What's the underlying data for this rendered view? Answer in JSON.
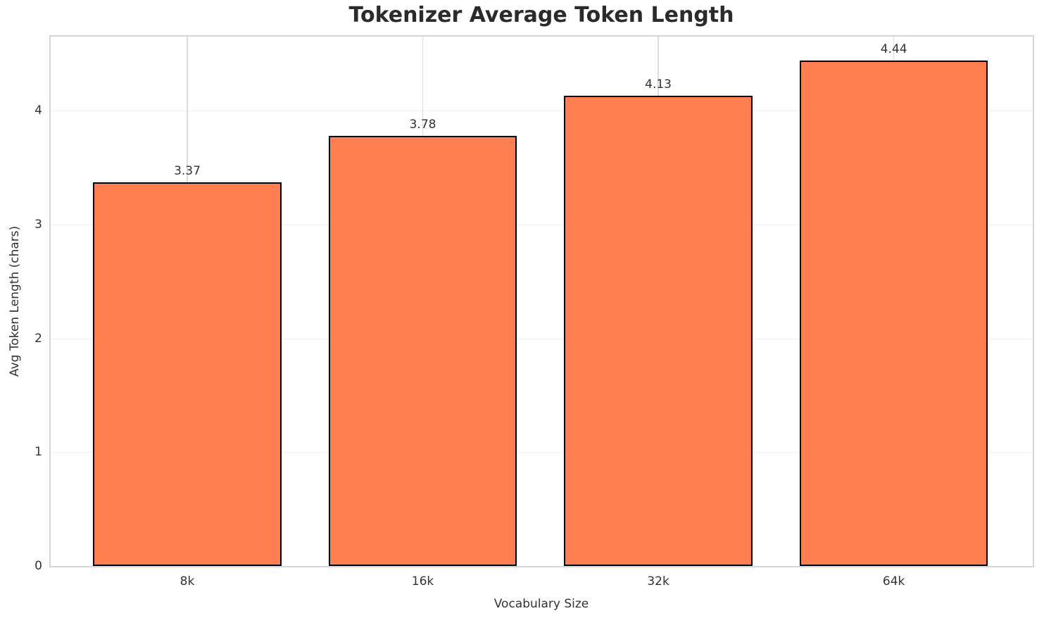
{
  "chart_data": {
    "type": "bar",
    "title": "Tokenizer Average Token Length",
    "xlabel": "Vocabulary Size",
    "ylabel": "Avg Token Length (chars)",
    "categories": [
      "8k",
      "16k",
      "32k",
      "64k"
    ],
    "values": [
      3.37,
      3.78,
      4.13,
      4.44
    ],
    "bar_labels": [
      "3.37",
      "3.78",
      "4.13",
      "4.44"
    ],
    "yticks": [
      0,
      1,
      2,
      3,
      4
    ],
    "ylim": [
      0,
      4.65
    ],
    "xlim": [
      -0.58,
      3.59
    ],
    "bar_width_units": 0.8,
    "grid": true,
    "legend": false,
    "colors": {
      "bar_fill": "#FF7F50",
      "bar_edge": "#000000",
      "grid_horizontal": "#f0f0f0",
      "grid_vertical": "#dcdcdc",
      "spine": "#d5d5d5",
      "text": "#333333",
      "title_text": "#2b2b2b"
    }
  }
}
